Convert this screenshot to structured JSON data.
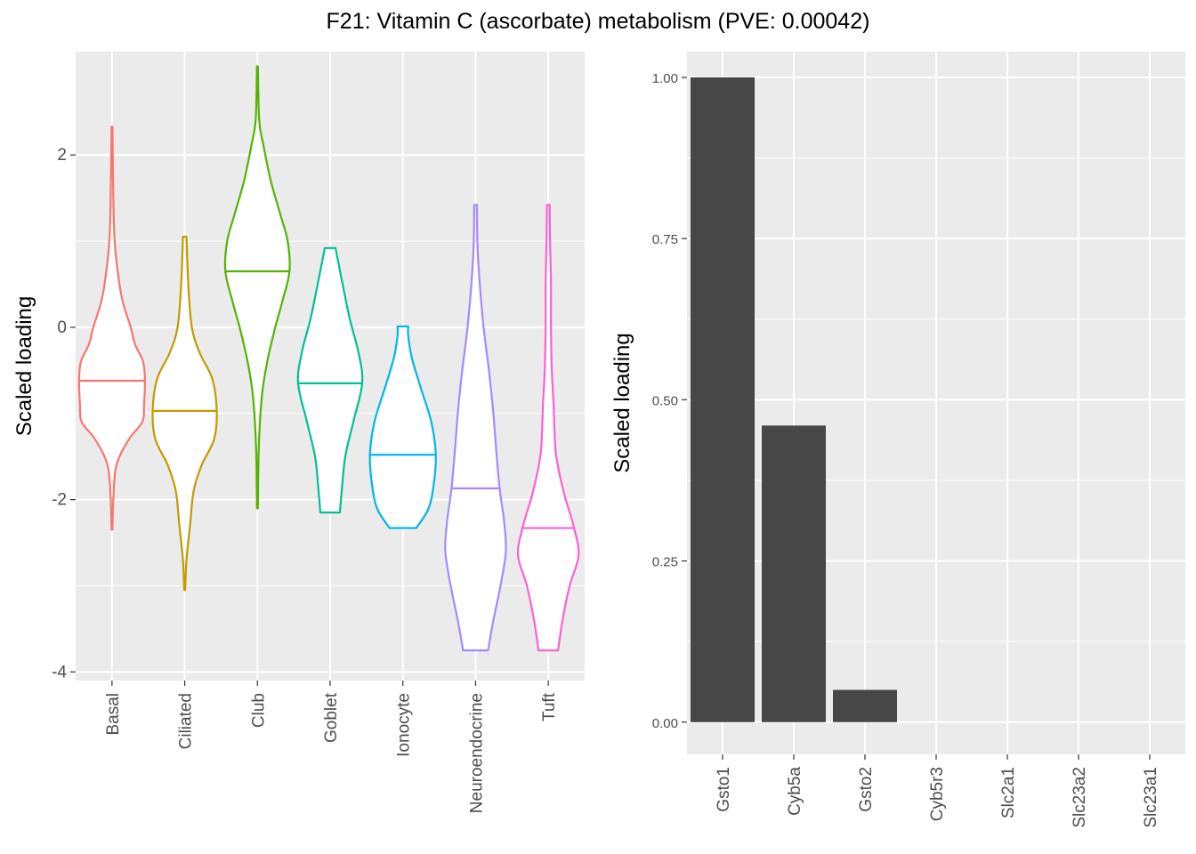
{
  "title": "F21: Vitamin C (ascorbate) metabolism (PVE: 0.00042)",
  "chart_data": [
    {
      "type": "violin",
      "ylabel": "Scaled loading",
      "xlabel": "",
      "ylim": [
        -4.1,
        3.2
      ],
      "yticks": [
        -4,
        -2,
        0,
        2
      ],
      "ytick_labels": [
        "-4",
        "-2",
        "0",
        "2"
      ],
      "grid": true,
      "categories": [
        "Basal",
        "Ciliated",
        "Club",
        "Goblet",
        "Ionocyte",
        "Neuroendocrine",
        "Tuft"
      ],
      "series": [
        {
          "name": "Basal",
          "color": "#F8766D",
          "min": -2.35,
          "max": 2.33,
          "median": -0.62,
          "profile": [
            [
              -2.35,
              0.5
            ],
            [
              -2.0,
              1.5
            ],
            [
              -1.6,
              5
            ],
            [
              -1.3,
              19
            ],
            [
              -1.1,
              34
            ],
            [
              -0.9,
              36
            ],
            [
              -0.62,
              37
            ],
            [
              -0.4,
              35
            ],
            [
              -0.2,
              26
            ],
            [
              0.0,
              21
            ],
            [
              0.3,
              12
            ],
            [
              0.6,
              7
            ],
            [
              1.0,
              3
            ],
            [
              1.5,
              1.5
            ],
            [
              2.33,
              0.5
            ]
          ]
        },
        {
          "name": "Ciliated",
          "color": "#C49A00",
          "min": -3.05,
          "max": 1.05,
          "median": -0.97,
          "profile": [
            [
              -3.05,
              0.5
            ],
            [
              -2.7,
              2
            ],
            [
              -2.3,
              6
            ],
            [
              -1.9,
              10
            ],
            [
              -1.6,
              19
            ],
            [
              -1.3,
              33
            ],
            [
              -0.97,
              36
            ],
            [
              -0.6,
              31
            ],
            [
              -0.3,
              17
            ],
            [
              0.0,
              8
            ],
            [
              0.5,
              4
            ],
            [
              1.05,
              2
            ]
          ]
        },
        {
          "name": "Club",
          "color": "#53B400",
          "min": -2.1,
          "max": 3.03,
          "median": 0.65,
          "profile": [
            [
              -2.1,
              0.5
            ],
            [
              -1.4,
              1.5
            ],
            [
              -0.8,
              5
            ],
            [
              -0.4,
              11
            ],
            [
              0.0,
              20
            ],
            [
              0.3,
              28
            ],
            [
              0.65,
              36
            ],
            [
              1.0,
              34
            ],
            [
              1.3,
              26
            ],
            [
              1.7,
              15
            ],
            [
              2.1,
              7
            ],
            [
              2.4,
              2
            ],
            [
              3.03,
              0.5
            ]
          ]
        },
        {
          "name": "Goblet",
          "color": "#00C094",
          "min": -2.15,
          "max": 0.92,
          "median": -0.65,
          "profile": [
            [
              -2.15,
              11
            ],
            [
              -1.9,
              13
            ],
            [
              -1.5,
              17
            ],
            [
              -1.1,
              26
            ],
            [
              -0.65,
              36
            ],
            [
              -0.3,
              32
            ],
            [
              0.1,
              22
            ],
            [
              0.5,
              14
            ],
            [
              0.92,
              6
            ]
          ]
        },
        {
          "name": "Ionocyte",
          "color": "#00B6EB",
          "min": -2.33,
          "max": 0.01,
          "median": -1.48,
          "profile": [
            [
              -2.33,
              15
            ],
            [
              -2.1,
              29
            ],
            [
              -1.8,
              35
            ],
            [
              -1.48,
              37
            ],
            [
              -1.1,
              32
            ],
            [
              -0.7,
              20
            ],
            [
              -0.35,
              10
            ],
            [
              -0.1,
              6
            ],
            [
              0.01,
              6
            ]
          ]
        },
        {
          "name": "Neuroendocrine",
          "color": "#A58AFF",
          "min": -3.75,
          "max": 1.42,
          "median": -1.87,
          "profile": [
            [
              -3.75,
              14
            ],
            [
              -3.4,
              20
            ],
            [
              -3.0,
              28
            ],
            [
              -2.6,
              34
            ],
            [
              -2.25,
              32
            ],
            [
              -1.87,
              27
            ],
            [
              -1.4,
              23
            ],
            [
              -1.0,
              20
            ],
            [
              -0.5,
              15
            ],
            [
              0.0,
              9
            ],
            [
              0.6,
              4
            ],
            [
              1.0,
              2
            ],
            [
              1.42,
              1.5
            ]
          ]
        },
        {
          "name": "Tuft",
          "color": "#FB61D7",
          "min": -3.75,
          "max": 1.42,
          "median": -2.33,
          "profile": [
            [
              -3.75,
              11
            ],
            [
              -3.4,
              16
            ],
            [
              -3.0,
              24
            ],
            [
              -2.65,
              34
            ],
            [
              -2.33,
              29
            ],
            [
              -1.9,
              17
            ],
            [
              -1.5,
              9
            ],
            [
              -1.2,
              7
            ],
            [
              -0.9,
              6
            ],
            [
              -0.5,
              4
            ],
            [
              0.0,
              3
            ],
            [
              0.5,
              3
            ],
            [
              1.0,
              2
            ],
            [
              1.42,
              1.5
            ]
          ]
        }
      ]
    },
    {
      "type": "bar",
      "ylabel": "Scaled loading",
      "xlabel": "",
      "ylim": [
        -0.05,
        1.04
      ],
      "yticks": [
        0,
        0.25,
        0.5,
        0.75,
        1.0
      ],
      "ytick_labels": [
        "0.00",
        "0.25",
        "0.50",
        "0.75",
        "1.00"
      ],
      "grid": true,
      "bar_color": "#474747",
      "categories": [
        "Gsto1",
        "Cyb5a",
        "Gsto2",
        "Cyb5r3",
        "Slc2a1",
        "Slc23a2",
        "Slc23a1"
      ],
      "values": [
        1.0,
        0.46,
        0.05,
        0.0,
        0.0,
        0.0,
        0.0
      ]
    }
  ]
}
